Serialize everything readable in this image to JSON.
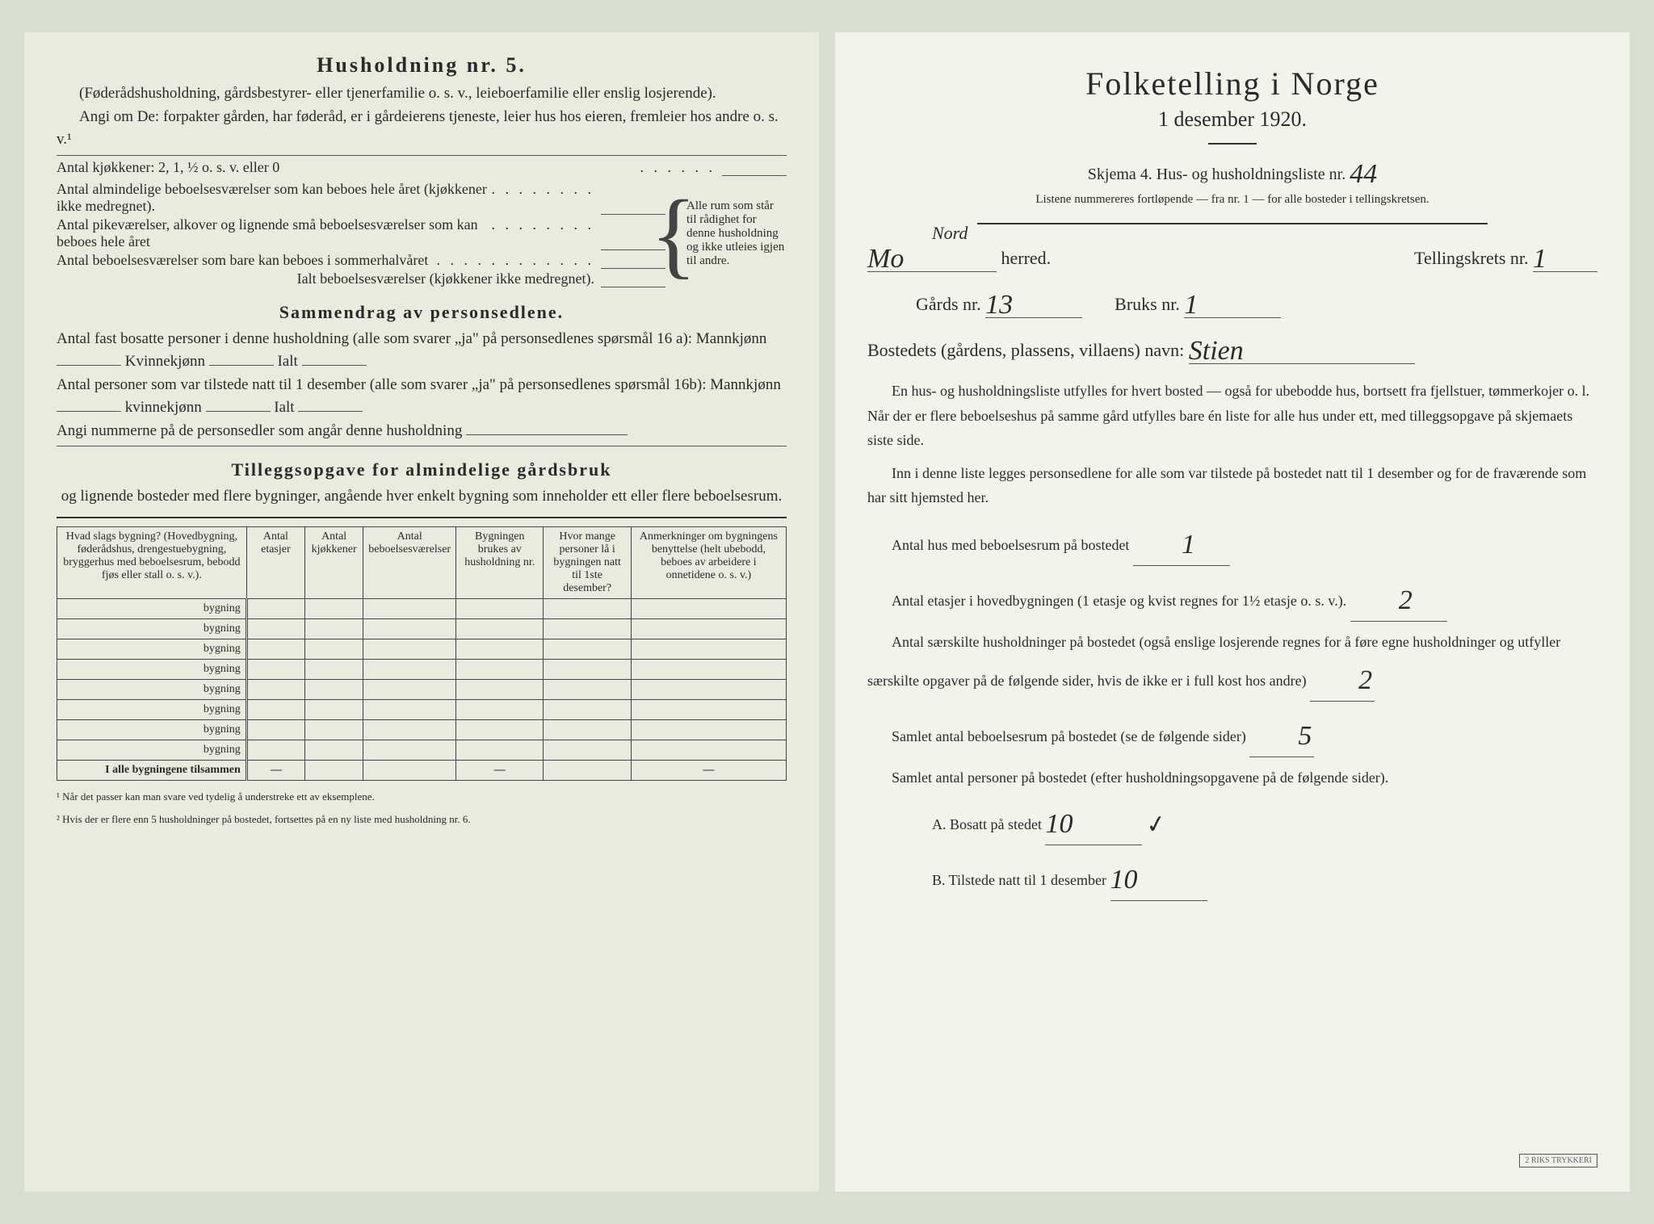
{
  "left": {
    "heading_husholdning": "Husholdning nr. 5.",
    "husholdning_note": "(Føderådshusholdning, gårdsbestyrer- eller tjenerfamilie o. s. v., leieboerfamilie eller enslig losjerende).",
    "angi_line": "Angi om De: forpakter gården, har føderåd, er i gårdeierens tjeneste, leier hus hos eieren, fremleier hos andre o. s. v.¹",
    "kjokkener_label": "Antal kjøkkener: 2, 1, ½ o. s. v. eller 0",
    "brace_lines": [
      "Antal almindelige beboelsesværelser som kan beboes hele året (kjøkkener ikke medregnet).",
      "Antal pikeværelser, alkover og lignende små beboelsesværelser som kan beboes hele året",
      "Antal beboelsesværelser som bare kan beboes i sommerhalvåret"
    ],
    "ialt_line": "Ialt beboelsesværelser (kjøkkener ikke medregnet).",
    "brace_right_text": "Alle rum som står til rådighet for denne husholdning og ikke utleies igjen til andre.",
    "sammendrag_heading": "Sammendrag av personsedlene.",
    "sammendrag_l1a": "Antal fast bosatte personer i denne husholdning (alle som svarer „ja\" på personsedlenes spørsmål 16 a): Mannkjønn",
    "sammendrag_l1b": "Kvinnekjønn",
    "sammendrag_l1c": "Ialt",
    "sammendrag_l2a": "Antal personer som var tilstede natt til 1 desember (alle som svarer „ja\" på personsedlenes spørsmål 16b): Mannkjønn",
    "sammendrag_l2b": "kvinnekjønn",
    "sammendrag_l2c": "Ialt",
    "sammendrag_l3": "Angi nummerne på de personsedler som angår denne husholdning",
    "tillegg_heading": "Tilleggsopgave for almindelige gårdsbruk",
    "tillegg_sub": "og lignende bosteder med flere bygninger, angående hver enkelt bygning som inneholder ett eller flere beboelsesrum.",
    "table": {
      "headers": [
        "Hvad slags bygning?\n(Hovedbygning, føderådshus, drengestuebygning, bryggerhus med beboelsesrum, bebodd fjøs eller stall o. s. v.).",
        "Antal etasjer",
        "Antal kjøkkener",
        "Antal beboelsesværelser",
        "Bygningen brukes av husholdning nr.",
        "Hvor mange personer lå i bygningen natt til 1ste desember?",
        "Anmerkninger om bygningens benyttelse (helt ubebodd, beboes av arbeidere i onnetidene o. s. v.)"
      ],
      "row_label": "bygning",
      "row_count": 8,
      "total_label": "I alle bygningene tilsammen",
      "dash": "—"
    },
    "footnote1": "¹ Når det passer kan man svare ved tydelig å understreke ett av eksemplene.",
    "footnote2": "² Hvis der er flere enn 5 husholdninger på bostedet, fortsettes på en ny liste med husholdning nr. 6."
  },
  "right": {
    "title": "Folketelling i Norge",
    "date": "1 desember 1920.",
    "skjema_label": "Skjema 4.   Hus- og husholdningsliste nr.",
    "skjema_nr": "44",
    "liste_note": "Listene nummereres fortløpende — fra nr. 1 — for alle bosteder i tellingskretsen.",
    "herred_hand_above": "Nord",
    "herred_hand": "Mo",
    "herred_label": "herred.",
    "tellingskrets_label": "Tellingskrets nr.",
    "tellingskrets_nr": "1",
    "gards_label": "Gårds nr.",
    "gards_nr": "13",
    "bruks_label": "Bruks nr.",
    "bruks_nr": "1",
    "bosted_label": "Bostedets (gårdens, plassens, villaens) navn:",
    "bosted_name": "Stien",
    "para1": "En hus- og husholdningsliste utfylles for hvert bosted — også for ubebodde hus, bortsett fra fjellstuer, tømmerkojer o. l. Når der er flere beboelseshus på samme gård utfylles bare én liste for alle hus under ett, med tilleggsopgave på skjemaets siste side.",
    "para2": "Inn i denne liste legges personsedlene for alle som var tilstede på bostedet natt til 1 desember og for de fraværende som har sitt hjemsted her.",
    "q_hus_label": "Antal hus med beboelsesrum på bostedet",
    "q_hus_val": "1",
    "q_etasjer_label_a": "Antal etasjer i hovedbygningen (1 etasje og kvist regnes for 1½ etasje o. s. v.).",
    "q_etasjer_val": "2",
    "q_hushold_label": "Antal særskilte husholdninger på bostedet (også enslige losjerende regnes for å føre egne husholdninger og utfyller særskilte opgaver på de følgende sider, hvis de ikke er i full kost hos andre)",
    "q_hushold_val": "2",
    "q_beboelsesrum_label": "Samlet antal beboelsesrum på bostedet (se de følgende sider)",
    "q_beboelsesrum_val": "5",
    "q_personer_label": "Samlet antal personer på bostedet (efter husholdningsopgavene på de følgende sider).",
    "q_bosatt_label": "A.  Bosatt på stedet",
    "q_bosatt_val": "10",
    "q_bosatt_check": "✓",
    "q_tilstede_label": "B.  Tilstede natt til 1 desember",
    "q_tilstede_val": "10",
    "stamp_text": "2 RIKS TRYKKERI"
  }
}
